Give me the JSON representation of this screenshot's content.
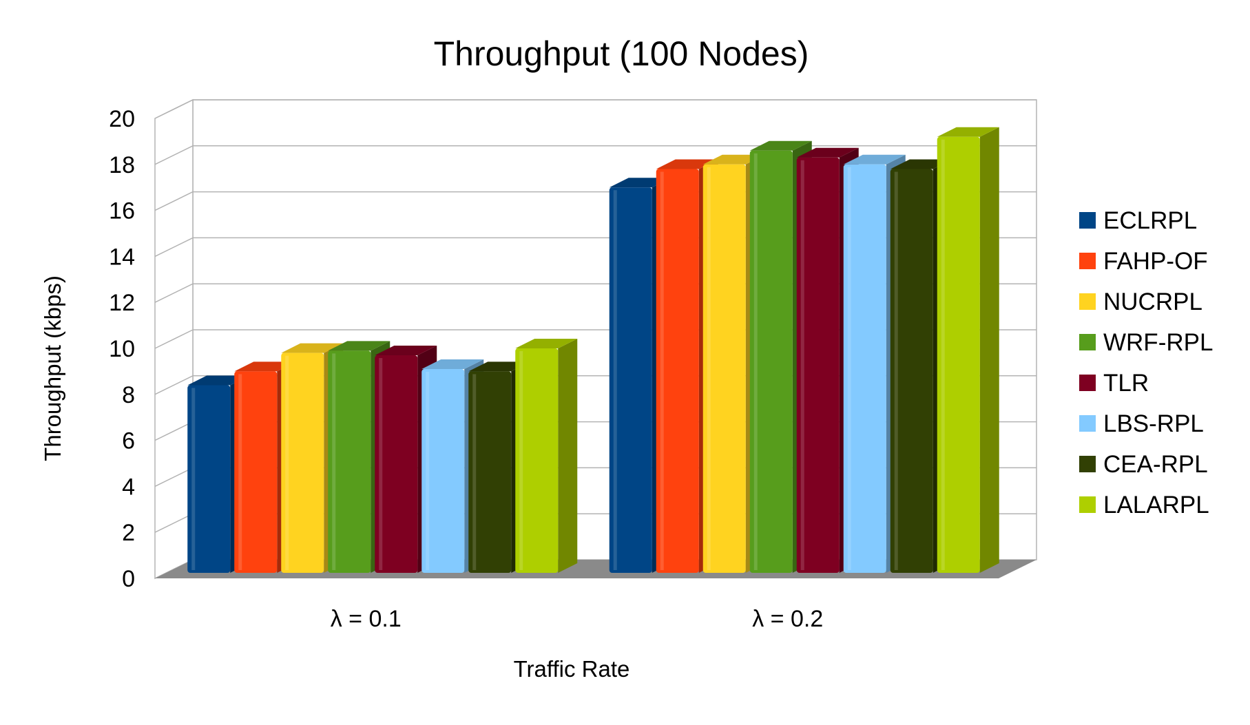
{
  "chart_data": {
    "type": "bar",
    "title": "Throughput (100 Nodes)",
    "xlabel": "Traffic Rate",
    "ylabel": "Throughput (kbps)",
    "ylim": [
      0,
      20
    ],
    "yticks": [
      0,
      2,
      4,
      6,
      8,
      10,
      12,
      14,
      16,
      18,
      20
    ],
    "grid": true,
    "legend_position": "right",
    "categories": [
      "λ = 0.1",
      "λ = 0.2"
    ],
    "series": [
      {
        "name": "ECLRPL",
        "color": "#004586",
        "values": [
          8.4,
          17.0
        ]
      },
      {
        "name": "FAHP-OF",
        "color": "#ff420e",
        "values": [
          9.0,
          17.8
        ]
      },
      {
        "name": "NUCRPL",
        "color": "#ffd320",
        "values": [
          9.8,
          18.0
        ]
      },
      {
        "name": "WRF-RPL",
        "color": "#579d1c",
        "values": [
          9.9,
          18.6
        ]
      },
      {
        "name": "TLR",
        "color": "#7e0021",
        "values": [
          9.7,
          18.3
        ]
      },
      {
        "name": "LBS-RPL",
        "color": "#83caff",
        "values": [
          9.1,
          18.0
        ]
      },
      {
        "name": "CEA-RPL",
        "color": "#314004",
        "values": [
          9.0,
          17.8
        ]
      },
      {
        "name": "LALARPL",
        "color": "#aecf00",
        "values": [
          10.0,
          19.2
        ]
      }
    ]
  }
}
